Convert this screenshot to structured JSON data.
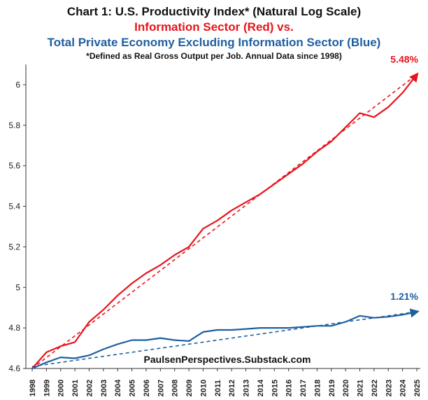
{
  "chart_data": {
    "type": "line",
    "title": "Chart 1: U.S. Productivity Index* (Natural Log Scale)",
    "subtitle_red": "Information Sector (Red) vs.",
    "subtitle_blue": "Total Private Economy Excluding Information Sector (Blue)",
    "note": "*Defined as Real Gross Output per Job.  Annual Data since 1998)",
    "watermark": "PaulsenPerspectives.Substack.com",
    "xlabel": "",
    "ylabel": "",
    "ylim": [
      4.6,
      6.1
    ],
    "yticks": [
      4.6,
      4.8,
      5,
      5.2,
      5.4,
      5.6,
      5.8,
      6
    ],
    "ytick_labels": [
      "4.6",
      "4.8",
      "5",
      "5.2",
      "5.4",
      "5.6",
      "5.8",
      "6"
    ],
    "categories": [
      "1998",
      "1999",
      "2000",
      "2001",
      "2002",
      "2003",
      "2004",
      "2005",
      "2006",
      "2007",
      "2008",
      "2009",
      "2010",
      "2011",
      "2012",
      "2013",
      "2014",
      "2015",
      "2016",
      "2017",
      "2018",
      "2019",
      "2020",
      "2021",
      "2022",
      "2023",
      "2024",
      "2025"
    ],
    "series": [
      {
        "name": "Information Sector",
        "color": "#e8141c",
        "values": [
          4.6,
          4.68,
          4.71,
          4.73,
          4.83,
          4.89,
          4.96,
          5.02,
          5.07,
          5.11,
          5.16,
          5.2,
          5.29,
          5.33,
          5.38,
          5.42,
          5.46,
          5.51,
          5.56,
          5.61,
          5.67,
          5.72,
          5.79,
          5.86,
          5.84,
          5.89,
          5.96,
          6.05
        ],
        "trend": [
          4.6,
          6.05
        ],
        "annotation": "5.48%"
      },
      {
        "name": "Total Private Economy Excluding Information Sector",
        "color": "#1f5fa0",
        "values": [
          4.6,
          4.63,
          4.655,
          4.65,
          4.665,
          4.695,
          4.72,
          4.74,
          4.74,
          4.75,
          4.74,
          4.735,
          4.78,
          4.79,
          4.79,
          4.795,
          4.8,
          4.8,
          4.8,
          4.805,
          4.81,
          4.81,
          4.83,
          4.86,
          4.85,
          4.855,
          4.865,
          4.88
        ],
        "trend": [
          4.61,
          4.88
        ],
        "annotation": "1.21%"
      }
    ]
  }
}
